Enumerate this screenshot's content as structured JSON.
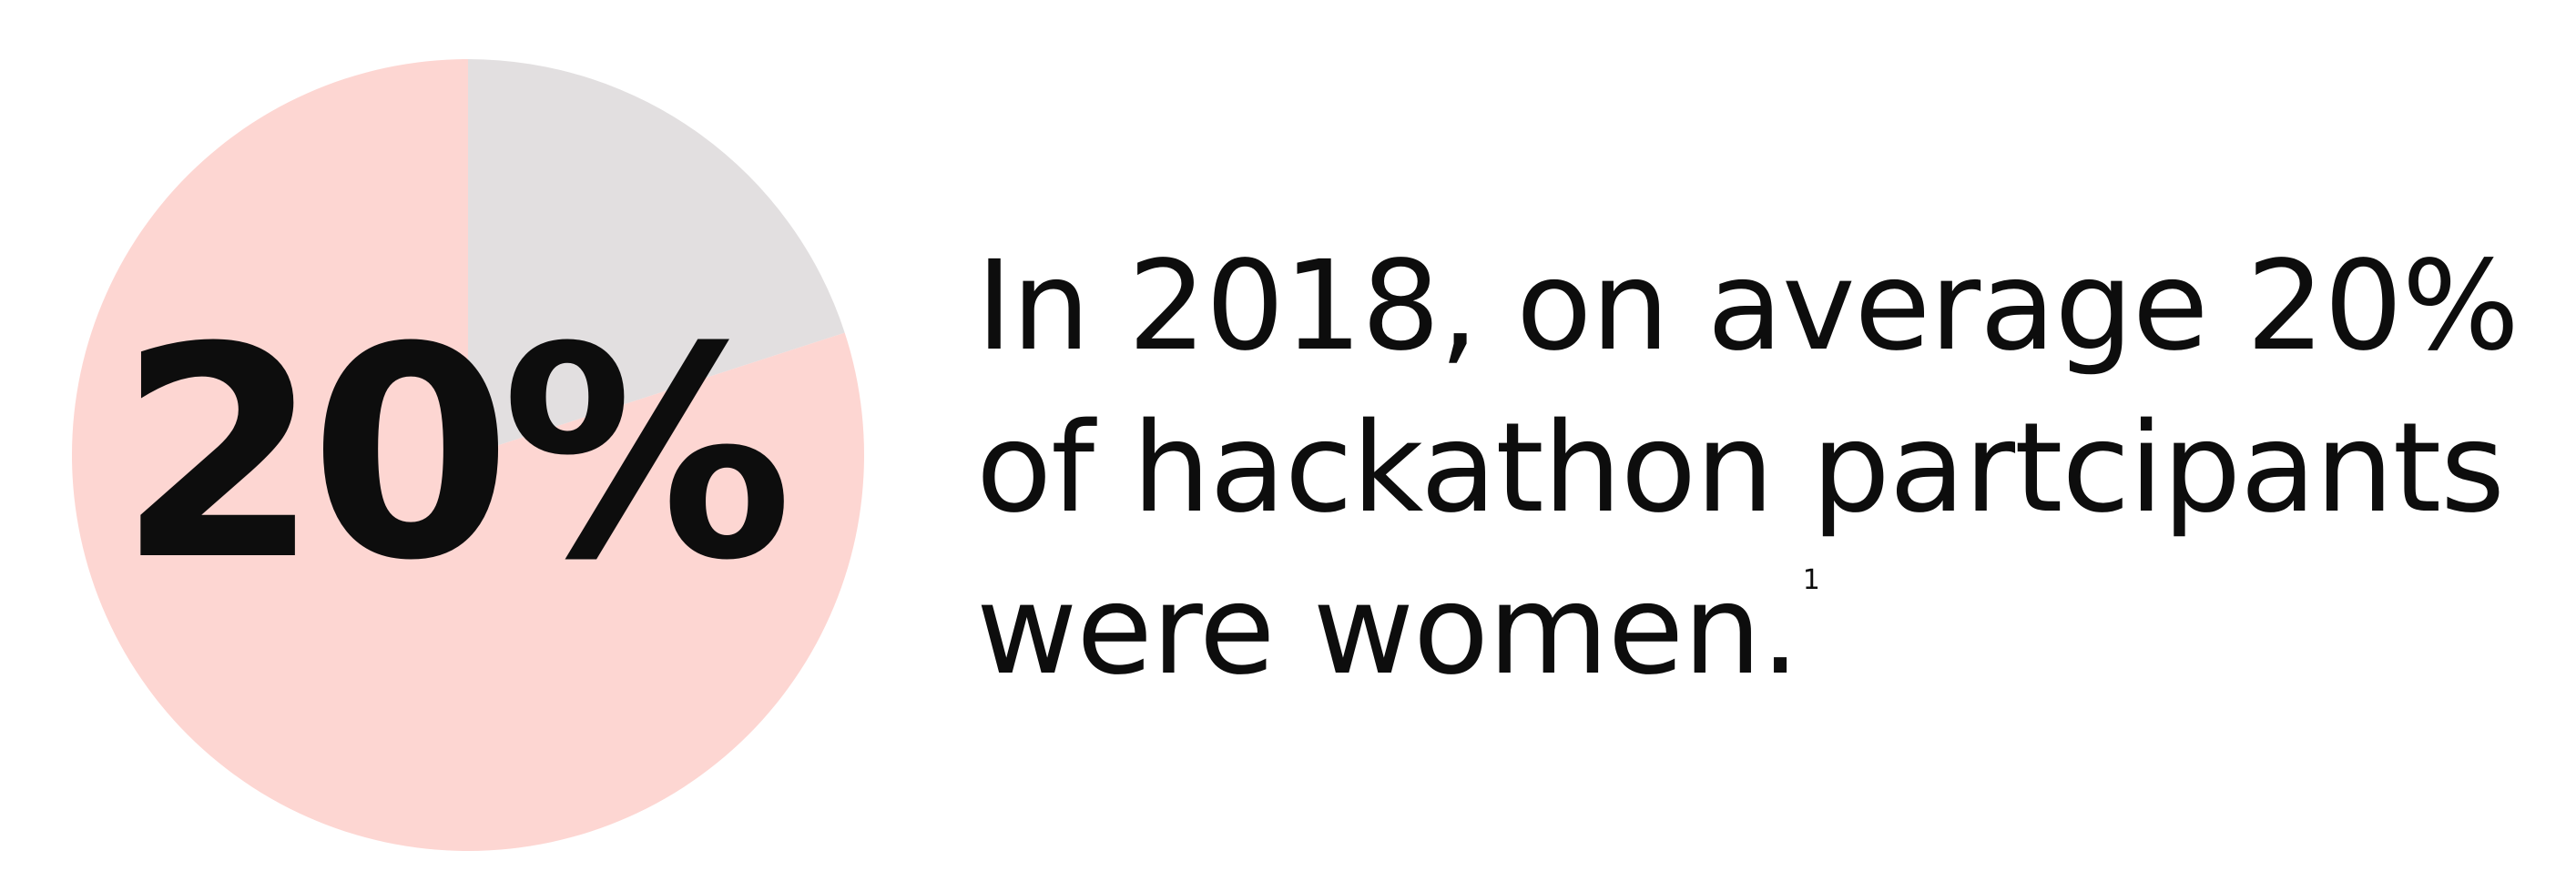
{
  "chart_data": {
    "type": "pie",
    "slices": [
      {
        "value": 20,
        "color": "#e2dfe0"
      },
      {
        "value": 80,
        "color": "#fdd6d2"
      }
    ],
    "center_label": "20%",
    "label_color": "#0d0d0d"
  },
  "statement": {
    "lines": [
      "In 2018, on average 20%",
      "of hackathon partcipants",
      "were women."
    ],
    "footnote": "1"
  }
}
